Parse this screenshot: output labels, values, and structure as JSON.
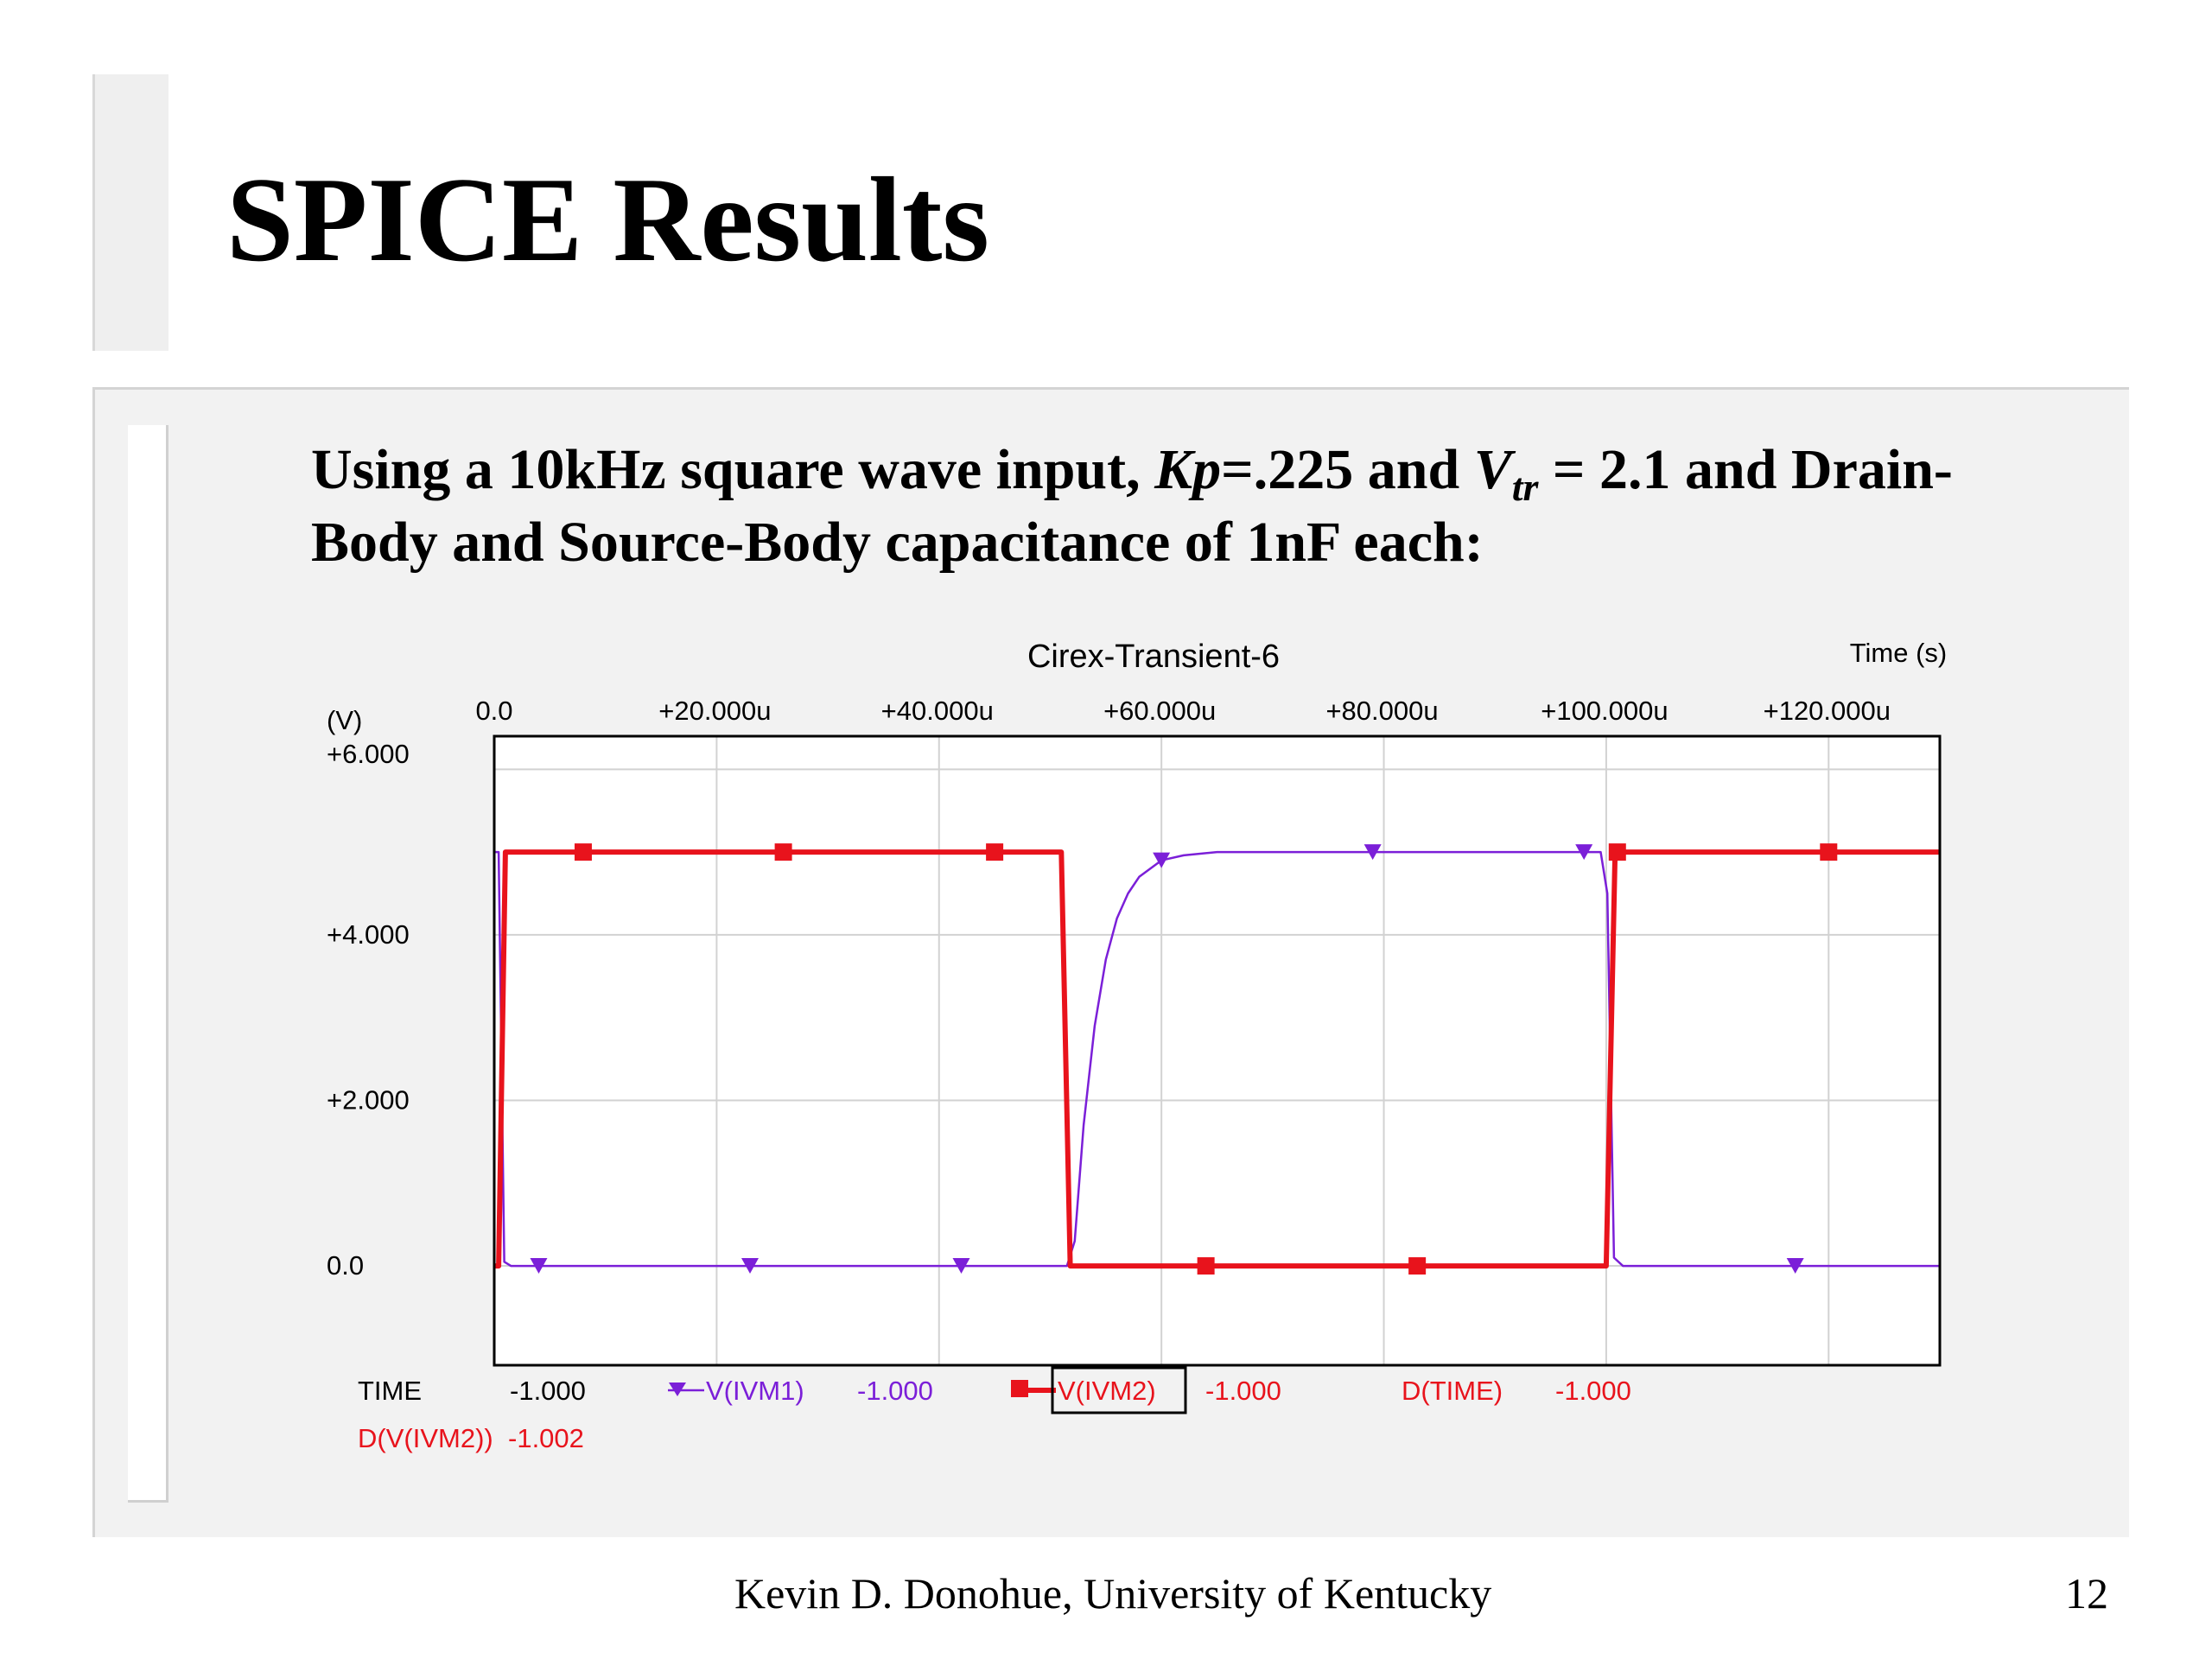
{
  "slide": {
    "title": "SPICE Results",
    "bullet": {
      "part1": "Using a 10kHz square wave input, ",
      "kp_symbol": "Kp",
      "part2": "=.225 and ",
      "v_symbol": "V",
      "v_subscript": "tr",
      "part3": " = 2.1 and Drain-Body and Source-Body capacitance of 1nF each:"
    },
    "footer": "Kevin D. Donohue, University of Kentucky",
    "page_number": "12"
  },
  "chart_data": {
    "type": "line",
    "title": "Cirex-Transient-6",
    "xlabel": "Time (s)",
    "ylabel": "(V)",
    "xlim": [
      0,
      130
    ],
    "ylim": [
      -1.2,
      6.4
    ],
    "x_unit_note": "u",
    "x_ticks": [
      0,
      20,
      40,
      60,
      80,
      100,
      120
    ],
    "x_tick_labels": [
      "0.0",
      "+20.000u",
      "+40.000u",
      "+60.000u",
      "+80.000u",
      "+100.000u",
      "+120.000u"
    ],
    "y_ticks": [
      6,
      4,
      2,
      0
    ],
    "y_tick_labels": [
      "+6.000",
      "+4.000",
      "+2.000",
      "0.0"
    ],
    "grid": true,
    "series": [
      {
        "name": "V(IVM1)",
        "color": "#7b1fd8",
        "marker": "triangle-down",
        "points": [
          [
            0,
            5.0
          ],
          [
            0.4,
            5.0
          ],
          [
            0.9,
            0.05
          ],
          [
            1.5,
            0.0
          ],
          [
            51.5,
            0.0
          ],
          [
            52.2,
            0.3
          ],
          [
            53,
            1.7
          ],
          [
            54,
            2.9
          ],
          [
            55,
            3.7
          ],
          [
            56,
            4.2
          ],
          [
            57,
            4.5
          ],
          [
            58,
            4.7
          ],
          [
            60,
            4.9
          ],
          [
            62,
            4.96
          ],
          [
            65,
            5.0
          ],
          [
            99.5,
            5.0
          ],
          [
            100.1,
            4.5
          ],
          [
            100.7,
            0.1
          ],
          [
            101.5,
            0.0
          ],
          [
            130,
            0.0
          ]
        ],
        "marker_points": [
          [
            4,
            0.0
          ],
          [
            23,
            0.0
          ],
          [
            42,
            0.0
          ],
          [
            60,
            4.9
          ],
          [
            79,
            5.0
          ],
          [
            98,
            5.0
          ],
          [
            117,
            0.0
          ]
        ]
      },
      {
        "name": "V(IVM2)",
        "color": "#e8131c",
        "marker": "square",
        "points": [
          [
            0,
            0.0
          ],
          [
            0.4,
            0.0
          ],
          [
            1,
            5.0
          ],
          [
            51,
            5.0
          ],
          [
            51.8,
            0.0
          ],
          [
            100,
            0.0
          ],
          [
            100.8,
            5.0
          ],
          [
            130,
            5.0
          ]
        ],
        "marker_points": [
          [
            8,
            5.0
          ],
          [
            26,
            5.0
          ],
          [
            45,
            5.0
          ],
          [
            64,
            0.0
          ],
          [
            83,
            0.0
          ],
          [
            101,
            5.0
          ],
          [
            120,
            5.0
          ]
        ]
      }
    ],
    "legend": {
      "row1": [
        "TIME",
        "-1.000",
        "V(IVM1)",
        "-1.000",
        "V(IVM2)",
        "-1.000",
        "D(TIME)",
        "-1.000"
      ],
      "row2": [
        "D(V(IVM2))",
        "-1.002"
      ],
      "colors": {
        "black": "#000000",
        "purple": "#7b1fd8",
        "red": "#e8131c"
      },
      "placement": "bottom"
    }
  }
}
